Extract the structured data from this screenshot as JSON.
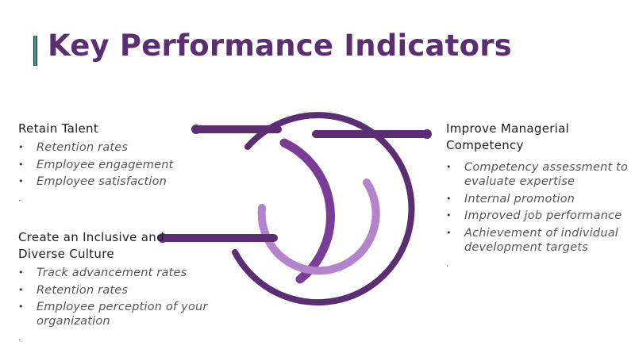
{
  "title": "Key Performance Indicators",
  "colors": {
    "title": "#5b2d73",
    "accent_bar": "#2a9d8f",
    "ring_outer": "#5b2d73",
    "ring_middle": "#7a3c96",
    "ring_inner": "#b383cc"
  },
  "sections": {
    "retain": {
      "heading": "Retain Talent",
      "items": [
        "Retention rates",
        "Employee engagement",
        "Employee satisfaction"
      ],
      "trailing": "."
    },
    "inclusive": {
      "heading_line1": "Create an Inclusive and",
      "heading_line2": "Diverse Culture",
      "items": [
        "Track advancement rates",
        "Retention rates",
        "Employee perception of your organization"
      ],
      "trailing": "."
    },
    "managerial": {
      "heading_line1": "Improve Managerial",
      "heading_line2": "Competency",
      "items": [
        "Competency assessment to evaluate expertise",
        "Internal promotion",
        "Improved job performance",
        "Achievement of individual development targets"
      ],
      "trailing": "."
    }
  }
}
